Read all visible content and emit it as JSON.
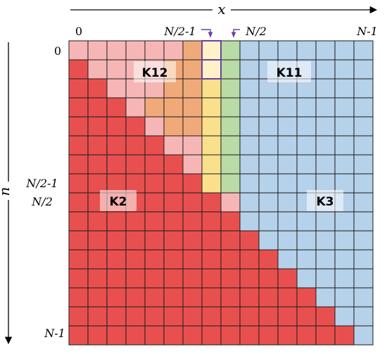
{
  "axes": {
    "x_label": "x",
    "n_label": "n",
    "x_ticks": {
      "start": "0",
      "mid_left": "N/2-1",
      "mid_right": "N/2",
      "end": "N-1"
    },
    "n_ticks": {
      "start": "0",
      "mid_upper": "N/2-1",
      "mid_lower": "N/2",
      "end": "N-1"
    }
  },
  "grid": {
    "size": 16
  },
  "regions": {
    "K12": {
      "label": "K12",
      "color": "#f0aa79"
    },
    "K11": {
      "label": "K11",
      "color": "#b6d1ea"
    },
    "K2": {
      "label": "K2",
      "color": "#f7b6b6"
    },
    "K3": {
      "label": "K3",
      "color": "#e8504f"
    },
    "col_mid_left": {
      "color": "#fbe08c",
      "highlight_color": "#fff2c9"
    },
    "col_mid_right": {
      "color": "#b9dba5"
    }
  },
  "highlight": {
    "outline_color": "#6b3fa0",
    "arrow_color": "#6b3fa0"
  }
}
